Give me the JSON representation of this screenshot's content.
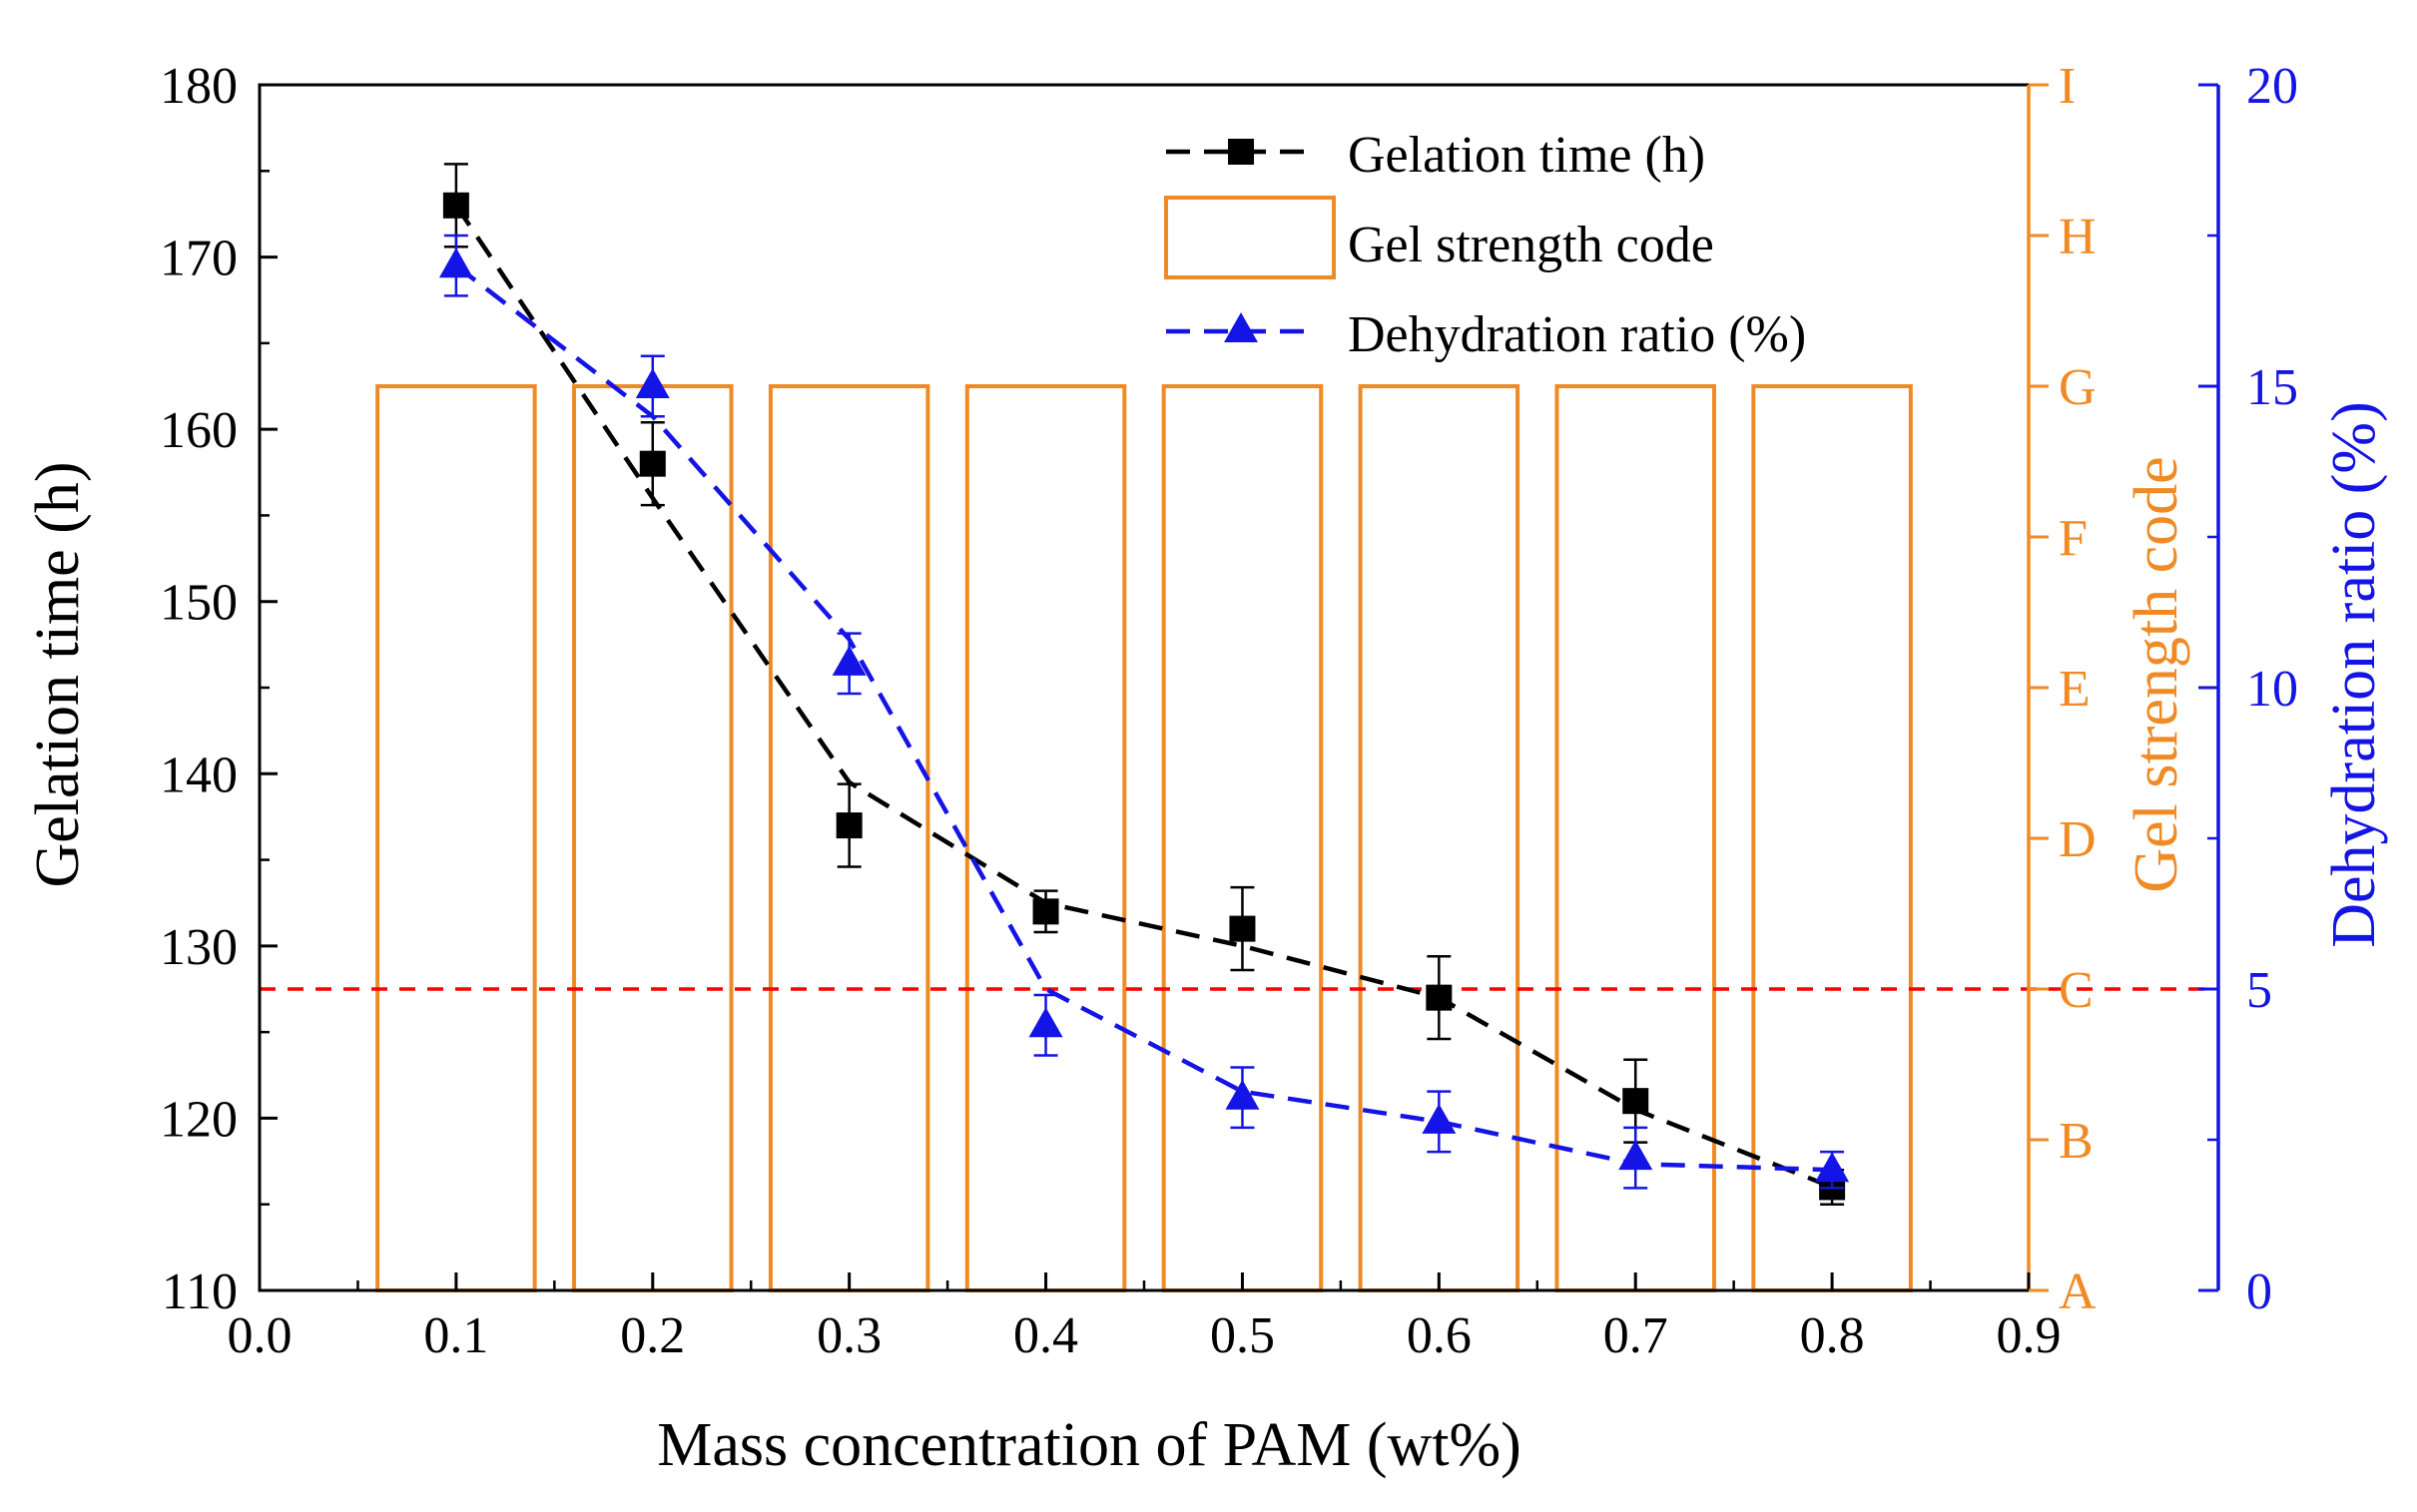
{
  "chart_data": {
    "type": "bar+line",
    "xlabel": "Mass concentration of PAM (wt%)",
    "xlim": [
      0.0,
      0.9
    ],
    "xticks": [
      "0.0",
      "0.1",
      "0.2",
      "0.3",
      "0.4",
      "0.5",
      "0.6",
      "0.7",
      "0.8",
      "0.9"
    ],
    "left_axis": {
      "label": "Gelation time (h)",
      "ylim": [
        110,
        180
      ],
      "ticks": [
        "110",
        "120",
        "130",
        "140",
        "150",
        "160",
        "170",
        "180"
      ],
      "color": "#000000"
    },
    "gel_axis": {
      "label": "Gel strength code",
      "codes": [
        "A",
        "B",
        "C",
        "D",
        "E",
        "F",
        "G",
        "H",
        "I"
      ],
      "color": "#F08A24"
    },
    "right_axis": {
      "label": "Dehydration ratio (%)",
      "ylim": [
        0,
        20
      ],
      "ticks": [
        "0",
        "5",
        "10",
        "15",
        "20"
      ],
      "color": "#1414E6"
    },
    "x": [
      0.1,
      0.2,
      0.3,
      0.4,
      0.5,
      0.6,
      0.7,
      0.8
    ],
    "series": [
      {
        "name": "Gelation time (h)",
        "axis": "left",
        "marker": "square",
        "color": "#000000",
        "values": [
          173,
          158,
          137,
          132,
          131,
          127,
          121,
          116
        ],
        "errors": [
          2.4,
          2.4,
          2.4,
          1.2,
          2.4,
          2.4,
          2.4,
          1.0
        ],
        "fit_curve": [
          173,
          156,
          139.5,
          132.5,
          130,
          127,
          120.5,
          116
        ]
      },
      {
        "name": "Gel strength code",
        "axis": "gel",
        "type": "bar",
        "color": "#F08A24",
        "bar_width": 0.08,
        "values": [
          "G",
          "G",
          "G",
          "G",
          "G",
          "G",
          "G",
          "G"
        ]
      },
      {
        "name": "Dehydration ratio (%)",
        "axis": "right",
        "marker": "triangle",
        "color": "#1414E6",
        "values": [
          17.0,
          15.0,
          10.4,
          4.4,
          3.2,
          2.8,
          2.2,
          2.0
        ],
        "errors": [
          0.5,
          0.5,
          0.5,
          0.5,
          0.5,
          0.5,
          0.5,
          0.3
        ],
        "fit_curve": [
          17.0,
          14.5,
          10.8,
          5.0,
          3.3,
          2.8,
          2.1,
          2.0
        ]
      }
    ],
    "reference_line": {
      "axis": "right",
      "value": 5,
      "color": "#FF0000",
      "style": "dashed"
    },
    "legend": {
      "position": "top-right",
      "entries": [
        "Gelation time (h)",
        "Gel strength code",
        "Dehydration ratio (%)"
      ]
    }
  }
}
